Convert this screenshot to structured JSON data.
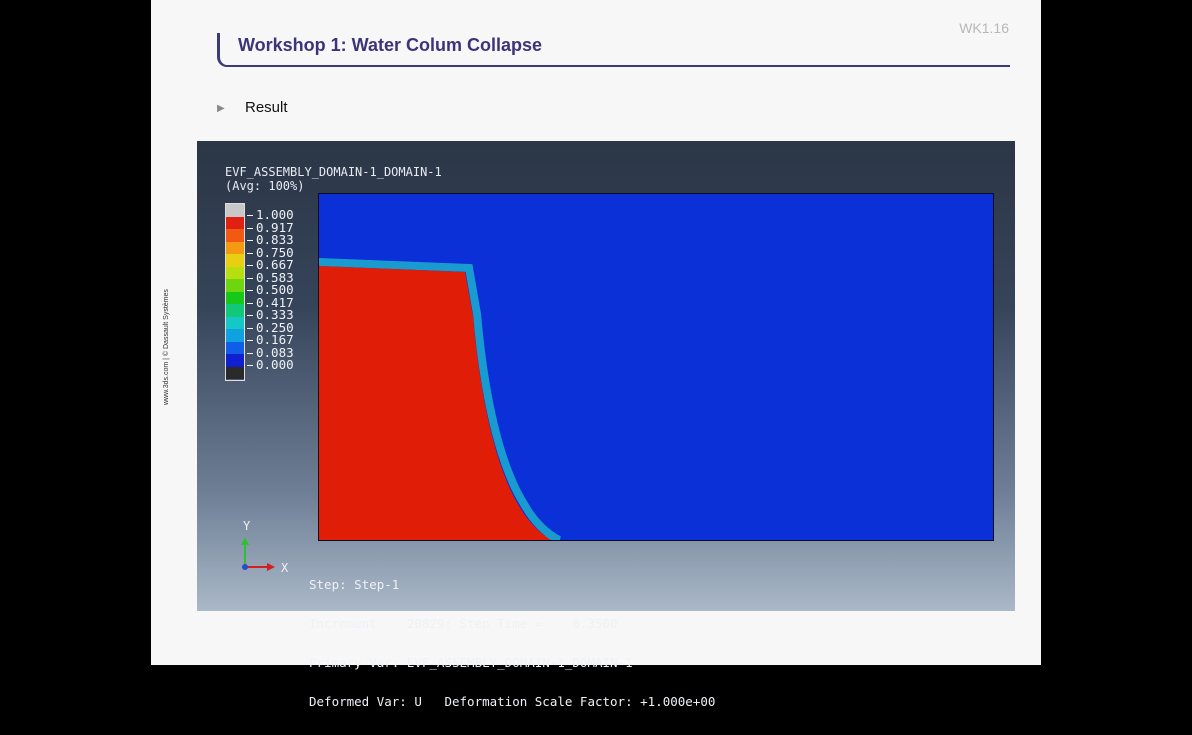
{
  "slide": {
    "number": "WK1.16",
    "title": "Workshop 1: Water Colum Collapse",
    "bullet": "Result",
    "side_credit": "www.3ds.com | © Dassault Systèmes"
  },
  "viewport": {
    "field_name": "EVF_ASSEMBLY_DOMAIN-1_DOMAIN-1",
    "averaging": "(Avg: 100%)",
    "legend": {
      "labels": [
        "1.000",
        "0.917",
        "0.833",
        "0.750",
        "0.667",
        "0.583",
        "0.500",
        "0.417",
        "0.333",
        "0.250",
        "0.167",
        "0.083",
        "0.000"
      ],
      "colors": [
        "#c8c8c8",
        "#e02010",
        "#f05a12",
        "#f39a12",
        "#e8d010",
        "#b8de10",
        "#6ed610",
        "#18c818",
        "#10c878",
        "#14c8c8",
        "#10a2e0",
        "#105ee8",
        "#1020d0",
        "#2a2a2a"
      ]
    },
    "triad": {
      "y_label": "Y",
      "x_label": "X"
    },
    "info": {
      "step": "Step: Step-1",
      "increment": "Increment    20829: Step Time =    0.3500",
      "primary": "Primary Var: EVF_ASSEMBLY_DOMAIN-1_DOMAIN-1",
      "deformed": "Deformed Var: U   Deformation Scale Factor: +1.000e+00"
    },
    "colors": {
      "water": "#e01e08",
      "air": "#0c30d8",
      "interface": "#1a9bd0"
    }
  }
}
